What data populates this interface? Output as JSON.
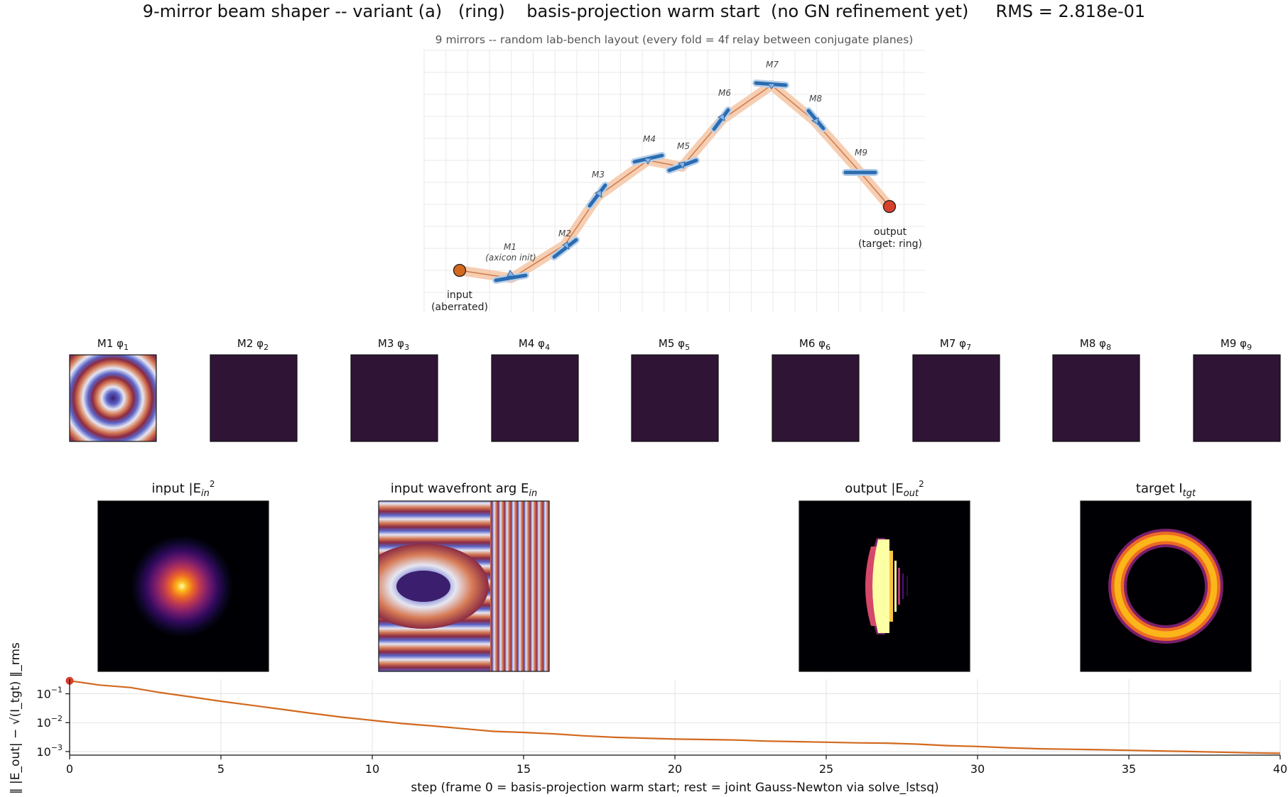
{
  "title": "9-mirror beam shaper -- variant (a)   (ring)    basis-projection warm start  (no GN refinement yet)     RMS = 2.818e-01",
  "layout": {
    "subtitle": "9 mirrors -- random lab-bench layout (every fold = 4f relay between conjugate planes)",
    "input_label": [
      "input",
      "(aberrated)"
    ],
    "output_label": [
      "output",
      "(target: ring)"
    ],
    "mirror_labels": [
      "M1",
      "M2",
      "M3",
      "M4",
      "M5",
      "M6",
      "M7",
      "M8",
      "M9"
    ],
    "m1_note": "(axicon init)",
    "colors": {
      "beam": "#f5c6a5",
      "beam_core": "#d07a4a",
      "mirror": "#2b6cb0",
      "input": "#d2691e",
      "output": "#d9412b"
    }
  },
  "mirror_phases": {
    "titles": [
      "M1  φ",
      "M2  φ",
      "M3  φ",
      "M4  φ",
      "M5  φ",
      "M6  φ",
      "M7  φ",
      "M8  φ",
      "M9  φ"
    ],
    "subscripts": [
      "1",
      "2",
      "3",
      "4",
      "5",
      "6",
      "7",
      "8",
      "9"
    ],
    "flat_color": "#2f1435"
  },
  "fields": {
    "input_intensity": {
      "title": "input  |E",
      "sub": "in",
      "sup": "2"
    },
    "input_wavefront": {
      "title": "input wavefront  arg E",
      "sub": "in"
    },
    "output_intensity": {
      "title": "output  |E",
      "sub": "out",
      "sup": "2"
    },
    "target": {
      "title": "target  I",
      "sub": "tgt"
    }
  },
  "chart_data": {
    "type": "line",
    "title": "",
    "xlabel": "step  (frame 0 = basis-projection warm start; rest = joint Gauss-Newton via solve_lstsq)",
    "ylabel": "‖ |E_out| − √(I_tgt) ‖_rms",
    "yscale": "log",
    "xlim": [
      0,
      40
    ],
    "ylim": [
      0.00075,
      0.32
    ],
    "xticks": [
      0,
      5,
      10,
      15,
      20,
      25,
      30,
      35,
      40
    ],
    "yticks": [
      0.1,
      0.01,
      0.001
    ],
    "ytick_labels": [
      "10",
      "10",
      "10"
    ],
    "ytick_exponents": [
      "−1",
      "−2",
      "−3"
    ],
    "grid": true,
    "color": "#d2691e",
    "marker_color": "#d9412b",
    "current_point": {
      "x": 0,
      "y": 0.2818
    },
    "x": [
      0,
      1,
      2,
      3,
      4,
      5,
      6,
      7,
      8,
      9,
      10,
      11,
      12,
      13,
      14,
      15,
      16,
      17,
      18,
      19,
      20,
      21,
      22,
      23,
      24,
      25,
      26,
      27,
      28,
      29,
      30,
      31,
      32,
      33,
      34,
      35,
      36,
      37,
      38,
      39,
      40
    ],
    "values": [
      0.2818,
      0.2,
      0.165,
      0.11,
      0.078,
      0.055,
      0.04,
      0.029,
      0.021,
      0.0155,
      0.012,
      0.0093,
      0.0077,
      0.0062,
      0.005,
      0.0046,
      0.0041,
      0.0035,
      0.0031,
      0.0029,
      0.0027,
      0.0026,
      0.0025,
      0.0023,
      0.0022,
      0.0021,
      0.002,
      0.00195,
      0.0018,
      0.0016,
      0.0015,
      0.00135,
      0.00125,
      0.0012,
      0.00115,
      0.0011,
      0.00105,
      0.001,
      0.00095,
      0.0009,
      0.00087
    ]
  }
}
